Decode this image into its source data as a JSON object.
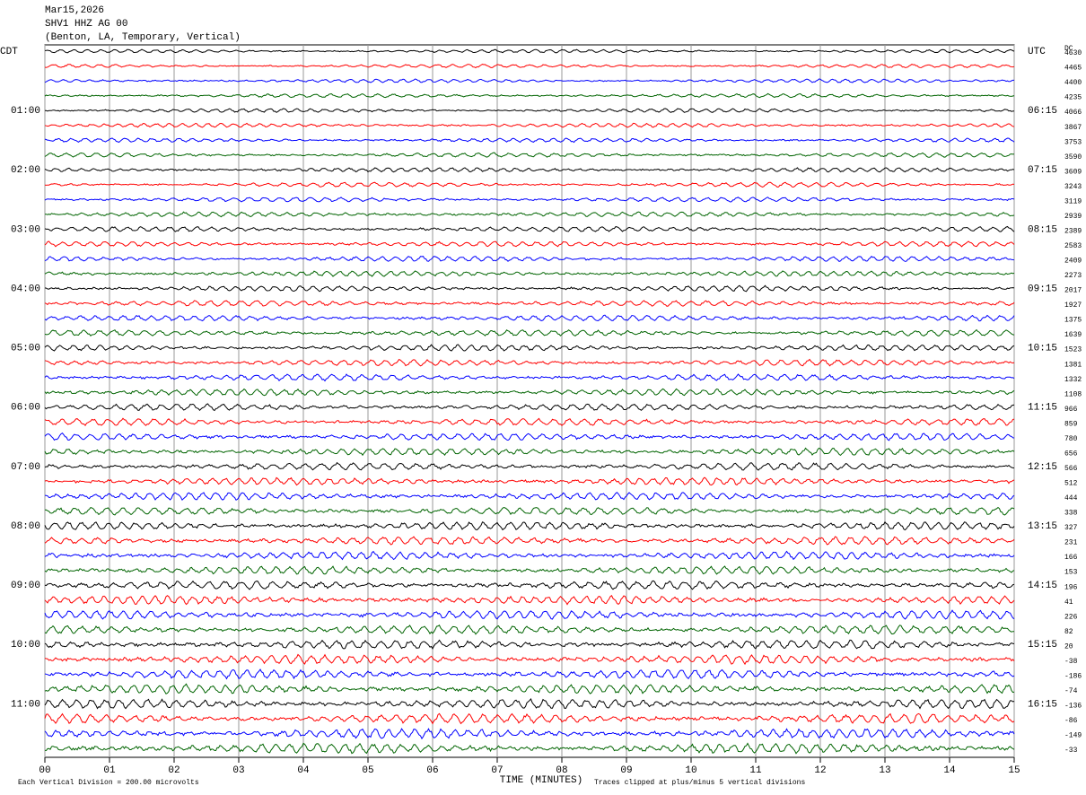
{
  "chart_data": {
    "type": "seismogram",
    "title_lines": [
      "Mar15,2026",
      "SHV1 HHZ AG 00",
      "(Benton, LA, Temporary, Vertical)"
    ],
    "left_zone": "CDT",
    "right_zone": "UTC",
    "dc_label": "DC",
    "left_hours": [
      "01:00",
      "02:00",
      "03:00",
      "04:00",
      "05:00",
      "06:00",
      "07:00",
      "08:00",
      "09:00",
      "10:00",
      "11:00"
    ],
    "right_hours": [
      "06:15",
      "07:15",
      "08:15",
      "09:15",
      "10:15",
      "11:15",
      "12:15",
      "13:15",
      "14:15",
      "15:15",
      "16:15"
    ],
    "dc_values": [
      4630,
      4465,
      4400,
      4235,
      4066,
      3867,
      3753,
      3590,
      3609,
      3243,
      3119,
      2939,
      2389,
      2583,
      2409,
      2273,
      2017,
      1927,
      1375,
      1639,
      1523,
      1381,
      1332,
      1108,
      966,
      859,
      780,
      656,
      566,
      512,
      444,
      338,
      327,
      231,
      166,
      153,
      196,
      41,
      226,
      82,
      20,
      -38,
      -186,
      -74,
      -136,
      -86,
      -149,
      -33
    ],
    "trace_colors": [
      "#000000",
      "#ff0000",
      "#0000ff",
      "#006400"
    ],
    "xlim": [
      0,
      15
    ],
    "xticks": [
      {
        "value": 0,
        "label": "00"
      },
      {
        "value": 1,
        "label": "01"
      },
      {
        "value": 2,
        "label": "02"
      },
      {
        "value": 3,
        "label": "03"
      },
      {
        "value": 4,
        "label": "04"
      },
      {
        "value": 5,
        "label": "05"
      },
      {
        "value": 6,
        "label": "06"
      },
      {
        "value": 7,
        "label": "07"
      },
      {
        "value": 8,
        "label": "08"
      },
      {
        "value": 9,
        "label": "09"
      },
      {
        "value": 10,
        "label": "10"
      },
      {
        "value": 11,
        "label": "11"
      },
      {
        "value": 12,
        "label": "12"
      },
      {
        "value": 13,
        "label": "13"
      },
      {
        "value": 14,
        "label": "14"
      },
      {
        "value": 15,
        "label": "15"
      }
    ],
    "xlabel": "TIME (MINUTES)",
    "scale_note": "Each Vertical Division =  200.00 microvolts",
    "clip_note": "Traces clipped at plus/minus 5 vertical divisions",
    "grid": true
  }
}
